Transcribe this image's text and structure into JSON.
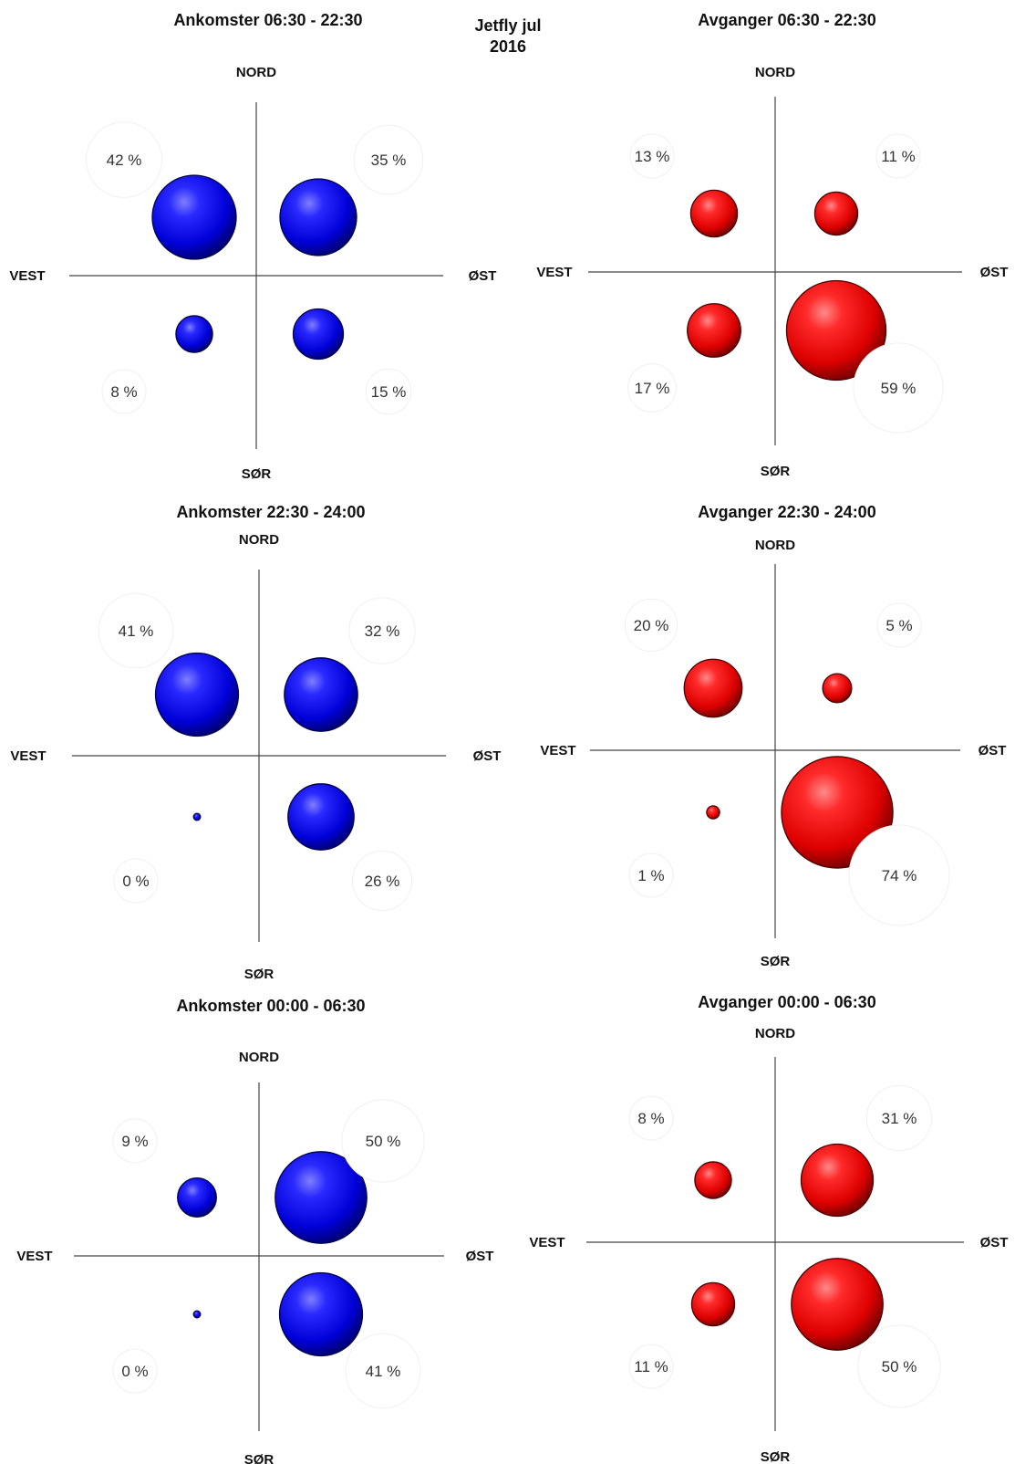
{
  "header": {
    "line1": "Jetfly jul",
    "line2": "2016"
  },
  "axis_labels": {
    "north": "NORD",
    "south": "SØR",
    "west": "VEST",
    "east": "ØST"
  },
  "colors": {
    "arrivals": "#0000ee",
    "departures": "#ee0000",
    "axis": "#444444"
  },
  "chart_data": [
    {
      "type": "bubble",
      "title": "Ankomster  06:30 - 22:30",
      "series": "arrivals",
      "values": {
        "nw": 42,
        "ne": 35,
        "sw": 8,
        "se": 15
      },
      "labels": {
        "nw": "42 %",
        "ne": "35 %",
        "sw": "8 %",
        "se": "15 %"
      }
    },
    {
      "type": "bubble",
      "title": "Avganger 06:30 - 22:30",
      "series": "departures",
      "values": {
        "nw": 13,
        "ne": 11,
        "sw": 17,
        "se": 59
      },
      "labels": {
        "nw": "13 %",
        "ne": "11 %",
        "sw": "17 %",
        "se": "59 %"
      }
    },
    {
      "type": "bubble",
      "title": "Ankomster  22:30 - 24:00",
      "series": "arrivals",
      "values": {
        "nw": 41,
        "ne": 32,
        "sw": 0,
        "se": 26
      },
      "labels": {
        "nw": "41 %",
        "ne": "32 %",
        "sw": "0 %",
        "se": "26 %"
      }
    },
    {
      "type": "bubble",
      "title": "Avganger 22:30 - 24:00",
      "series": "departures",
      "values": {
        "nw": 20,
        "ne": 5,
        "sw": 1,
        "se": 74
      },
      "labels": {
        "nw": "20 %",
        "ne": "5 %",
        "sw": "1 %",
        "se": "74 %"
      }
    },
    {
      "type": "bubble",
      "title": "Ankomster  00:00 - 06:30",
      "series": "arrivals",
      "values": {
        "nw": 9,
        "ne": 50,
        "sw": 0,
        "se": 41
      },
      "labels": {
        "nw": "9 %",
        "ne": "50 %",
        "sw": "0 %",
        "se": "41 %"
      }
    },
    {
      "type": "bubble",
      "title": "Avganger 00:00 - 06:30",
      "series": "departures",
      "values": {
        "nw": 8,
        "ne": 31,
        "sw": 11,
        "se": 50
      },
      "labels": {
        "nw": "8 %",
        "ne": "31 %",
        "sw": "11 %",
        "se": "50 %"
      }
    }
  ]
}
